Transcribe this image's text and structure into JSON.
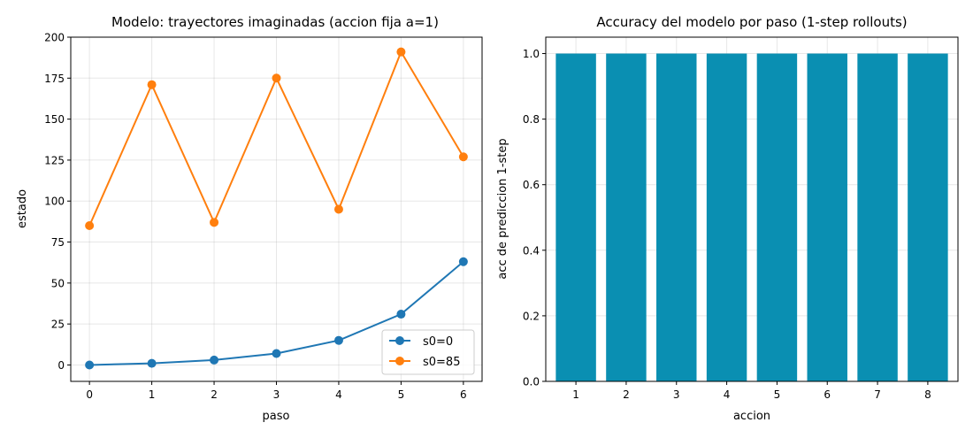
{
  "chart_data": [
    {
      "type": "line",
      "title": "Modelo: trayectores imaginadas (accion fija a=1)",
      "xlabel": "paso",
      "ylabel": "estado",
      "x": [
        0,
        1,
        2,
        3,
        4,
        5,
        6
      ],
      "xlim": [
        -0.3,
        6.3
      ],
      "ylim": [
        -10,
        200
      ],
      "xticks": [
        0,
        1,
        2,
        3,
        4,
        5,
        6
      ],
      "yticks": [
        0,
        25,
        50,
        75,
        100,
        125,
        150,
        175,
        200
      ],
      "grid": true,
      "legend": "lower-right",
      "series": [
        {
          "name": "s0=0",
          "color": "#1f77b4",
          "values": [
            0,
            1,
            3,
            7,
            15,
            31,
            63
          ]
        },
        {
          "name": "s0=85",
          "color": "#ff7f0e",
          "values": [
            85,
            171,
            87,
            175,
            95,
            191,
            127
          ]
        }
      ]
    },
    {
      "type": "bar",
      "title": "Accuracy del modelo por paso (1-step rollouts)",
      "xlabel": "accion",
      "ylabel": "acc de prediccion 1-step",
      "categories": [
        "1",
        "2",
        "3",
        "4",
        "5",
        "6",
        "7",
        "8"
      ],
      "values": [
        1.0,
        1.0,
        1.0,
        1.0,
        1.0,
        1.0,
        1.0,
        1.0
      ],
      "ylim": [
        0,
        1.05
      ],
      "yticks": [
        0.0,
        0.2,
        0.4,
        0.6,
        0.8,
        1.0
      ],
      "ytick_labels": [
        "0.0",
        "0.2",
        "0.4",
        "0.6",
        "0.8",
        "1.0"
      ],
      "grid": true,
      "color": "#0a8fb2"
    }
  ]
}
